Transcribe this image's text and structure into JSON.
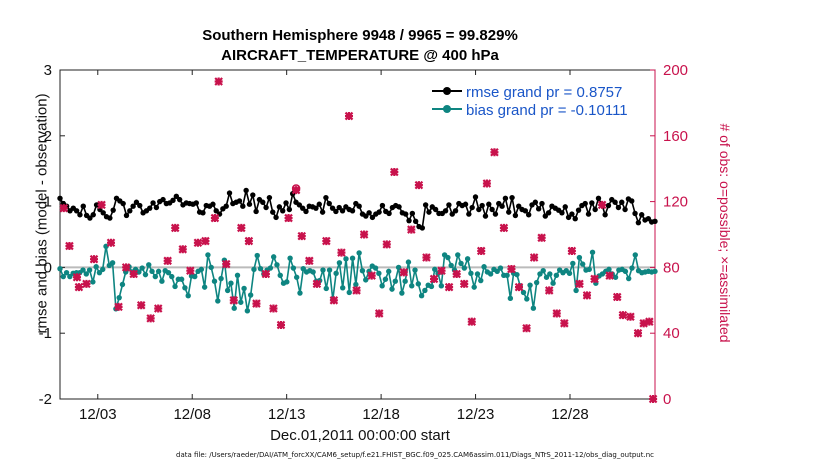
{
  "chart_data": {
    "type": "line",
    "title": "Southern Hemisphere 9948 / 9965 = 99.829%",
    "subtitle": "AIRCRAFT_TEMPERATURE @ 400 hPa",
    "xlabel": "Dec.01,2011 00:00:00 start",
    "ylabel_left": "rmse and bias (model - observation)",
    "ylabel_right": "# of obs: o=possible; ×=assimilated",
    "footer": "data file: /Users/raeder/DAI/ATM_forcXX/CAM6_setup/f.e21.FHIST_BGC.f09_025.CAM6assim.011/Diags_NTrS_2011-12/obs_diag_output.nc",
    "x_tick_labels": [
      "12/03",
      "12/08",
      "12/13",
      "12/18",
      "12/23",
      "12/28"
    ],
    "x_ticks": [
      3,
      8,
      13,
      18,
      23,
      28
    ],
    "xlim": [
      1,
      32.5
    ],
    "ylim_left": [
      -2,
      3
    ],
    "yticks_left": [
      -2,
      -1,
      0,
      1,
      2,
      3
    ],
    "ylim_right": [
      0,
      200
    ],
    "yticks_right": [
      0,
      40,
      80,
      120,
      160,
      200
    ],
    "legend_position": "top-right",
    "series": [
      {
        "name": "rmse grand pr = 0.8757",
        "color": "#000000",
        "marker": "dot",
        "values": [
          1.05,
          0.97,
          0.93,
          0.86,
          0.9,
          0.86,
          0.8,
          0.93,
          0.79,
          0.75,
          0.8,
          0.95,
          0.88,
          0.83,
          0.77,
          0.75,
          0.87,
          1.05,
          1.01,
          0.97,
          0.79,
          0.86,
          0.93,
          0.99,
          0.94,
          0.83,
          0.86,
          0.9,
          0.98,
          0.91,
          1.0,
          1.03,
          0.97,
          0.98,
          1.02,
          1.08,
          1.03,
          0.95,
          0.98,
          0.97,
          0.96,
          0.98,
          0.84,
          0.83,
          0.94,
          0.93,
          0.96,
          0.86,
          0.81,
          0.89,
          0.93,
          1.13,
          0.97,
          0.99,
          1.01,
          0.93,
          1.17,
          0.96,
          1.1,
          0.85,
          1.03,
          0.99,
          0.91,
          1.06,
          0.84,
          0.76,
          0.92,
          0.86,
          0.98,
          0.88,
          1.12,
          0.99,
          0.95,
          0.9,
          0.85,
          0.93,
          0.92,
          0.9,
          0.96,
          0.84,
          1.06,
          0.97,
          0.9,
          0.85,
          0.91,
          0.86,
          0.92,
          0.88,
          0.86,
          0.97,
          0.93,
          0.81,
          0.78,
          0.83,
          0.76,
          0.81,
          0.84,
          0.94,
          0.85,
          0.82,
          0.91,
          0.94,
          0.92,
          0.83,
          0.81,
          0.71,
          0.82,
          0.7,
          0.62,
          0.6,
          0.95,
          0.84,
          0.92,
          0.88,
          0.82,
          0.82,
          0.86,
          0.95,
          0.81,
          0.86,
          0.97,
          0.94,
          0.96,
          0.81,
          0.91,
          1.07,
          0.88,
          0.94,
          0.78,
          0.96,
          0.88,
          0.81,
          0.97,
          0.93,
          1.05,
          0.84,
          1.06,
          0.79,
          0.93,
          0.88,
          0.86,
          0.8,
          0.95,
          0.99,
          0.89,
          0.97,
          0.78,
          0.83,
          0.93,
          0.9,
          0.87,
          0.83,
          0.92,
          0.76,
          0.81,
          0.74,
          0.87,
          0.94,
          0.97,
          0.81,
          0.98,
          0.88,
          1.05,
          0.96,
          0.8,
          0.94,
          1.03,
          0.99,
          0.91,
          0.99,
          0.88,
          1.04,
          1.01,
          0.82,
          0.68,
          0.8,
          0.72,
          0.74,
          0.69,
          0.7
        ]
      },
      {
        "name": "bias grand pr = -0.10111",
        "color": "#0e8581",
        "marker": "dot",
        "values": [
          -0.02,
          -0.14,
          -0.08,
          -0.14,
          -0.09,
          -0.08,
          -0.08,
          -0.04,
          -0.1,
          -0.04,
          -0.22,
          0.01,
          -0.08,
          -0.03,
          0.32,
          0.03,
          0.07,
          -0.63,
          -0.46,
          -0.26,
          -0.07,
          0.01,
          -0.07,
          -0.03,
          -0.07,
          -0.01,
          -0.11,
          0.04,
          -0.06,
          -0.14,
          -0.06,
          -0.21,
          -0.05,
          -0.08,
          -0.14,
          -0.29,
          -0.18,
          -0.18,
          -0.31,
          -0.43,
          -0.13,
          -0.14,
          -0.06,
          -0.03,
          -0.3,
          0.19,
          0.0,
          -0.21,
          -0.51,
          -0.17,
          0.11,
          -0.35,
          -0.24,
          -0.62,
          -0.12,
          -0.53,
          -0.32,
          -0.66,
          -0.42,
          -0.03,
          0.18,
          -0.02,
          -0.1,
          -0.04,
          -0.01,
          0.16,
          0.04,
          -0.12,
          -0.24,
          -0.22,
          0.14,
          -0.01,
          -0.15,
          -0.39,
          -0.02,
          -0.07,
          -0.05,
          -0.07,
          -0.21,
          -0.2,
          -0.04,
          -0.32,
          -0.04,
          -0.49,
          -0.09,
          0.07,
          -0.31,
          0.13,
          -0.38,
          0.14,
          -0.26,
          0.22,
          -0.05,
          -0.19,
          -0.06,
          0.02,
          -0.01,
          -0.09,
          -0.28,
          -0.18,
          -0.06,
          -0.33,
          -0.21,
          0.0,
          -0.39,
          -0.21,
          0.08,
          -0.28,
          -0.04,
          -0.25,
          -0.43,
          -0.35,
          -0.27,
          -0.29,
          -0.03,
          -0.09,
          -0.28,
          0.19,
          0.15,
          0.03,
          -0.04,
          0.19,
          0.06,
          -0.01,
          0.13,
          -0.09,
          -0.3,
          -0.1,
          -0.2,
          0.01,
          -0.07,
          -0.1,
          -0.03,
          -0.06,
          -0.01,
          -0.12,
          -0.12,
          -0.47,
          -0.09,
          -0.11,
          -0.28,
          -0.38,
          -0.48,
          -0.27,
          -0.62,
          -0.23,
          -0.1,
          -0.05,
          -0.15,
          -0.1,
          -0.24,
          -0.12,
          -0.04,
          -0.08,
          -0.05,
          -0.09,
          0.06,
          -0.35,
          0.15,
          0.05,
          -0.04,
          -0.03,
          0.23,
          -0.24,
          -0.13,
          -0.1,
          -0.06,
          -0.03,
          -0.1,
          -0.15,
          -0.04,
          -0.03,
          -0.06,
          -0.17,
          -0.01,
          0.19,
          -0.05,
          -0.08,
          -0.07,
          -0.06,
          -0.07,
          -0.06
        ]
      },
      {
        "name": "# obs possible",
        "color": "#c8124c",
        "marker": "o",
        "values": [
          [
            13.5,
            128
          ]
        ]
      },
      {
        "name": "# obs assimilated",
        "color": "#c8124c",
        "marker": "x",
        "values": [
          [
            1.2,
            116
          ],
          [
            1.5,
            93
          ],
          [
            1.9,
            74
          ],
          [
            2.0,
            68
          ],
          [
            2.4,
            70
          ],
          [
            2.8,
            85
          ],
          [
            3.2,
            118
          ],
          [
            3.7,
            95
          ],
          [
            4.1,
            56
          ],
          [
            4.5,
            80
          ],
          [
            4.9,
            76
          ],
          [
            5.3,
            57
          ],
          [
            5.8,
            49
          ],
          [
            6.2,
            55
          ],
          [
            6.7,
            84
          ],
          [
            7.1,
            104
          ],
          [
            7.5,
            91
          ],
          [
            7.9,
            78
          ],
          [
            8.3,
            95
          ],
          [
            8.7,
            96
          ],
          [
            9.2,
            110
          ],
          [
            9.4,
            193
          ],
          [
            9.8,
            82
          ],
          [
            10.2,
            60
          ],
          [
            10.6,
            104
          ],
          [
            11.0,
            96
          ],
          [
            11.4,
            58
          ],
          [
            11.9,
            76
          ],
          [
            12.3,
            55
          ],
          [
            12.7,
            45
          ],
          [
            13.1,
            110
          ],
          [
            13.5,
            127
          ],
          [
            13.8,
            99
          ],
          [
            14.2,
            84
          ],
          [
            14.6,
            70
          ],
          [
            15.1,
            96
          ],
          [
            15.5,
            60
          ],
          [
            15.9,
            89
          ],
          [
            16.3,
            172
          ],
          [
            16.7,
            66
          ],
          [
            17.1,
            100
          ],
          [
            17.5,
            75
          ],
          [
            17.9,
            52
          ],
          [
            18.3,
            94
          ],
          [
            18.7,
            138
          ],
          [
            19.2,
            77
          ],
          [
            19.6,
            103
          ],
          [
            20.0,
            130
          ],
          [
            20.4,
            86
          ],
          [
            20.8,
            73
          ],
          [
            21.2,
            78
          ],
          [
            21.6,
            68
          ],
          [
            22.0,
            76
          ],
          [
            22.4,
            70
          ],
          [
            22.8,
            47
          ],
          [
            23.3,
            90
          ],
          [
            23.6,
            131
          ],
          [
            24.0,
            150
          ],
          [
            24.5,
            104
          ],
          [
            24.9,
            79
          ],
          [
            25.3,
            68
          ],
          [
            25.7,
            43
          ],
          [
            26.1,
            86
          ],
          [
            26.5,
            98
          ],
          [
            26.9,
            66
          ],
          [
            27.3,
            52
          ],
          [
            27.7,
            46
          ],
          [
            28.1,
            90
          ],
          [
            28.5,
            70
          ],
          [
            28.9,
            63
          ],
          [
            29.3,
            73
          ],
          [
            29.7,
            118
          ],
          [
            30.1,
            75
          ],
          [
            30.5,
            62
          ],
          [
            30.8,
            51
          ],
          [
            31.2,
            50
          ],
          [
            31.6,
            40
          ],
          [
            31.9,
            46
          ],
          [
            32.2,
            47
          ],
          [
            32.4,
            0
          ]
        ]
      }
    ]
  }
}
